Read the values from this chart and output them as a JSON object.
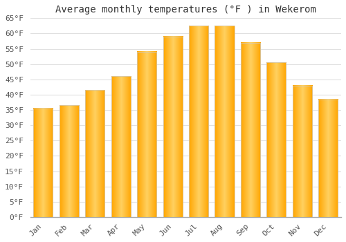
{
  "title": "Average monthly temperatures (°F ) in Wekerom",
  "months": [
    "Jan",
    "Feb",
    "Mar",
    "Apr",
    "May",
    "Jun",
    "Jul",
    "Aug",
    "Sep",
    "Oct",
    "Nov",
    "Dec"
  ],
  "values": [
    35.5,
    36.5,
    41.5,
    46,
    54,
    59,
    62.5,
    62.5,
    57,
    50.5,
    43,
    38.5
  ],
  "bar_color_center": "#FFD060",
  "bar_color_edge": "#FFA500",
  "ylim": [
    0,
    65
  ],
  "yticks": [
    0,
    5,
    10,
    15,
    20,
    25,
    30,
    35,
    40,
    45,
    50,
    55,
    60,
    65
  ],
  "ytick_labels": [
    "0°F",
    "5°F",
    "10°F",
    "15°F",
    "20°F",
    "25°F",
    "30°F",
    "35°F",
    "40°F",
    "45°F",
    "50°F",
    "55°F",
    "60°F",
    "65°F"
  ],
  "background_color": "#ffffff",
  "grid_color": "#e0e0e0",
  "title_fontsize": 10,
  "tick_fontsize": 8,
  "bar_width": 0.75,
  "spine_color": "#aaaaaa"
}
